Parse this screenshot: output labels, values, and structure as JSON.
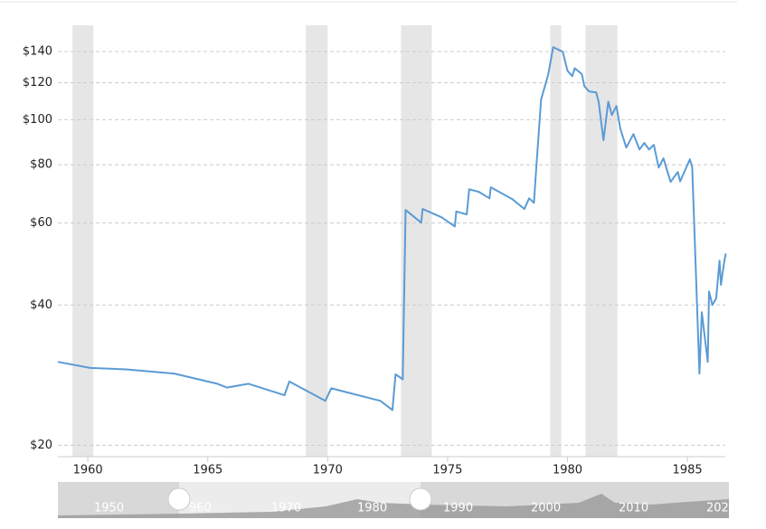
{
  "chart_data": {
    "type": "line",
    "ylog": true,
    "grid": true,
    "xlim": [
      1958.75,
      1986.58
    ],
    "xticks": [
      1960,
      1965,
      1970,
      1975,
      1980,
      1985
    ],
    "ylim": [
      18.9,
      158
    ],
    "yticks": [
      {
        "value": 20,
        "label": "$20"
      },
      {
        "value": 40,
        "label": "$40"
      },
      {
        "value": 60,
        "label": "$60"
      },
      {
        "value": 80,
        "label": "$80"
      },
      {
        "value": 100,
        "label": "$100"
      },
      {
        "value": 120,
        "label": "$120"
      },
      {
        "value": 140,
        "label": "$140"
      }
    ],
    "shaded": [
      [
        1959.36,
        1960.23
      ],
      [
        1969.09,
        1970.0
      ],
      [
        1973.06,
        1974.34
      ],
      [
        1979.28,
        1979.74
      ],
      [
        1980.75,
        1982.08
      ]
    ],
    "shade_color": "#e6e6e6",
    "x": [
      1958.75,
      1960.1,
      1961.6,
      1963.6,
      1965.4,
      1965.8,
      1966.7,
      1968.2,
      1968.4,
      1969.9,
      1970.15,
      1972.2,
      1972.7,
      1972.83,
      1973.13,
      1973.25,
      1973.9,
      1973.96,
      1974.75,
      1975.3,
      1975.36,
      1975.8,
      1975.9,
      1976.3,
      1976.75,
      1976.8,
      1977.7,
      1978.2,
      1978.4,
      1978.6,
      1978.7,
      1978.9,
      1979.2,
      1979.4,
      1979.8,
      1980.0,
      1980.2,
      1980.3,
      1980.6,
      1980.7,
      1980.9,
      1981.2,
      1981.3,
      1981.5,
      1981.7,
      1981.85,
      1982.04,
      1982.2,
      1982.45,
      1982.75,
      1983.0,
      1983.2,
      1983.4,
      1983.6,
      1983.8,
      1984.0,
      1984.3,
      1984.6,
      1984.7,
      1985.1,
      1985.2,
      1985.5,
      1985.6,
      1985.85,
      1985.9,
      1986.04,
      1986.2,
      1986.34,
      1986.4,
      1986.53,
      1986.6
    ],
    "series": [
      {
        "color": "#5b9bd5",
        "values": [
          30.2,
          29.3,
          29.1,
          28.5,
          27.1,
          26.6,
          27.1,
          25.6,
          27.4,
          24.9,
          26.5,
          24.9,
          23.8,
          28.4,
          27.7,
          64.0,
          60.1,
          64.3,
          61.7,
          59.0,
          63.5,
          62.6,
          70.9,
          70.0,
          67.8,
          71.6,
          67.5,
          64.3,
          67.8,
          66.3,
          78.9,
          110.4,
          125.2,
          143.1,
          140,
          127.4,
          124,
          129,
          125.2,
          118,
          115,
          114.4,
          109,
          90.3,
          109.3,
          102.3,
          107,
          95.7,
          87.1,
          93.1,
          86.3,
          89.1,
          86.3,
          88.3,
          78.9,
          82.6,
          73.5,
          77.2,
          73.7,
          82.2,
          79.1,
          28.5,
          38.6,
          30.2,
          42.8,
          40,
          41.3,
          49.8,
          44.2,
          49.4,
          51.6
        ]
      }
    ]
  },
  "navigator": {
    "labels": [
      "1950",
      "960",
      "1970",
      "1980",
      "1990",
      "2000",
      "2010",
      "202"
    ]
  }
}
